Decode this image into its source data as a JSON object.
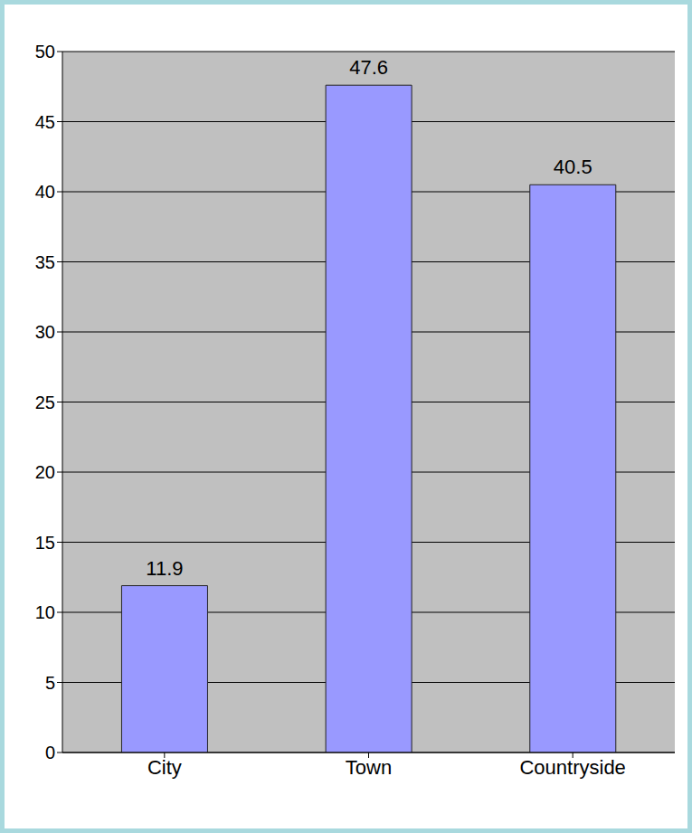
{
  "chart_data": {
    "type": "bar",
    "categories": [
      "City",
      "Town",
      "Countryside"
    ],
    "values": [
      11.9,
      47.6,
      40.5
    ],
    "color": "#9999ff",
    "ylim": [
      0,
      50
    ],
    "yticks": [
      0,
      5,
      10,
      15,
      20,
      25,
      30,
      35,
      40,
      45,
      50
    ],
    "grid": true,
    "data_labels": true
  }
}
